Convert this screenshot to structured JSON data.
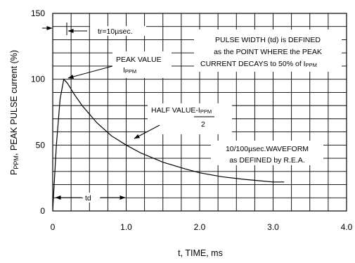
{
  "chart_data": {
    "type": "line",
    "xlabel": "t, TIME, ms",
    "ylabel": "P",
    "ylabel_sub": "PPM",
    "ylabel_rest": ", PEAK PULSE current (%)",
    "xlim": [
      0,
      4.0
    ],
    "ylim": [
      0,
      150
    ],
    "x_ticks": [
      "0",
      "1.0",
      "2.0",
      "3.0",
      "4.0"
    ],
    "y_ticks": [
      "0",
      "50",
      "100",
      "150"
    ],
    "grid": true,
    "series": [
      {
        "x": [
          0,
          0.01,
          0.05,
          0.1,
          0.15,
          0.2,
          0.3,
          0.4,
          0.6,
          0.8,
          1.0,
          1.2,
          1.5,
          1.8,
          2.0,
          2.3,
          2.6,
          2.8,
          3.0,
          3.15
        ],
        "values": [
          0,
          10,
          50,
          85,
          100,
          97,
          88,
          80,
          67,
          57,
          50,
          44,
          37,
          32,
          29,
          26,
          24,
          23,
          22,
          22
        ]
      }
    ],
    "annotations": {
      "tr": "tr=10µsec.",
      "pulse_width_lines": [
        "PULSE WIDTH (td) is DEFINED",
        "as the POINT WHERE the PEAK",
        "CURRENT DECAYS to 50% of I"
      ],
      "pulse_width_sub": "PPM",
      "peak_value": "PEAK VALUE",
      "peak_value_sym": "I",
      "peak_value_sub": "PPM",
      "half_value": "HALF VALUE-",
      "half_value_sym": "I",
      "half_value_sub": "PPM",
      "half_value_den": "2",
      "waveform_lines": [
        "10/100µsec.WAVEFORM",
        "as DEFINED by R.E.A."
      ],
      "td": "td"
    }
  }
}
